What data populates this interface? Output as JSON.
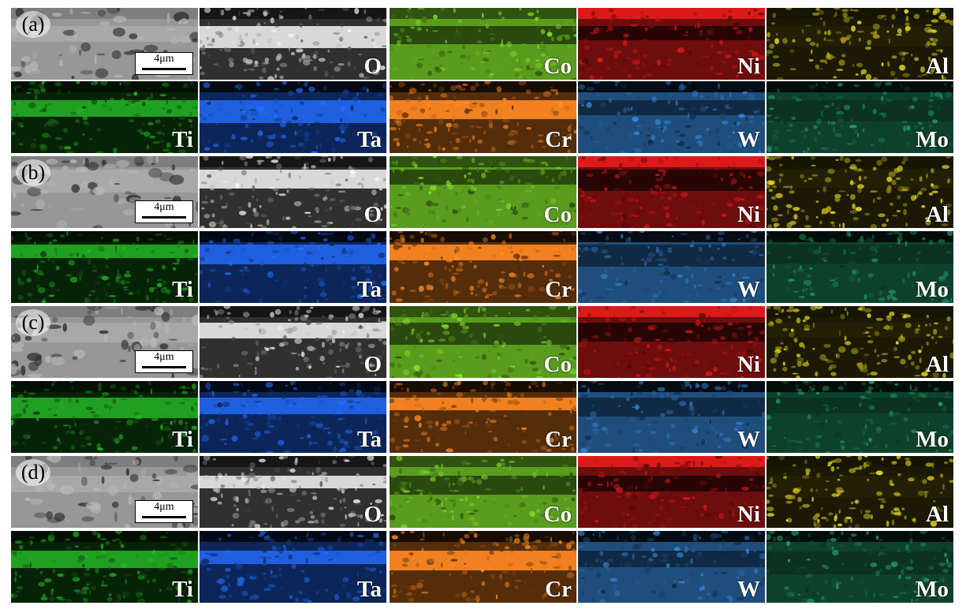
{
  "scale_bar_text": "4μm",
  "panels": [
    {
      "label": "(a)",
      "row1": [
        "",
        "O",
        "Co",
        "Ni",
        "Al"
      ],
      "row2": [
        "Ti",
        "Ta",
        "Cr",
        "W",
        "Mo"
      ]
    },
    {
      "label": "(b)",
      "row1": [
        "",
        "O",
        "Co",
        "Ni",
        "Al"
      ],
      "row2": [
        "Ti",
        "Ta",
        "Cr",
        "W",
        "Mo"
      ]
    },
    {
      "label": "(c)",
      "row1": [
        "",
        "O",
        "Co",
        "Ni",
        "Al"
      ],
      "row2": [
        "Ti",
        "Ta",
        "Cr",
        "W",
        "Mo"
      ]
    },
    {
      "label": "(d)",
      "row1": [
        "",
        "O",
        "Co",
        "Ni",
        "Al"
      ],
      "row2": [
        "Ti",
        "Ta",
        "Cr",
        "W",
        "Mo"
      ]
    }
  ],
  "element_colors": {
    "SEM": "#a8a8a8",
    "O": "#d8d8d8",
    "Co": "#78d028",
    "Ni": "#c81818",
    "Al": "#e0d020",
    "Ti": "#20a020",
    "Ta": "#2060e0",
    "Cr": "#f08020",
    "W": "#3078c0",
    "Mo": "#209060"
  }
}
